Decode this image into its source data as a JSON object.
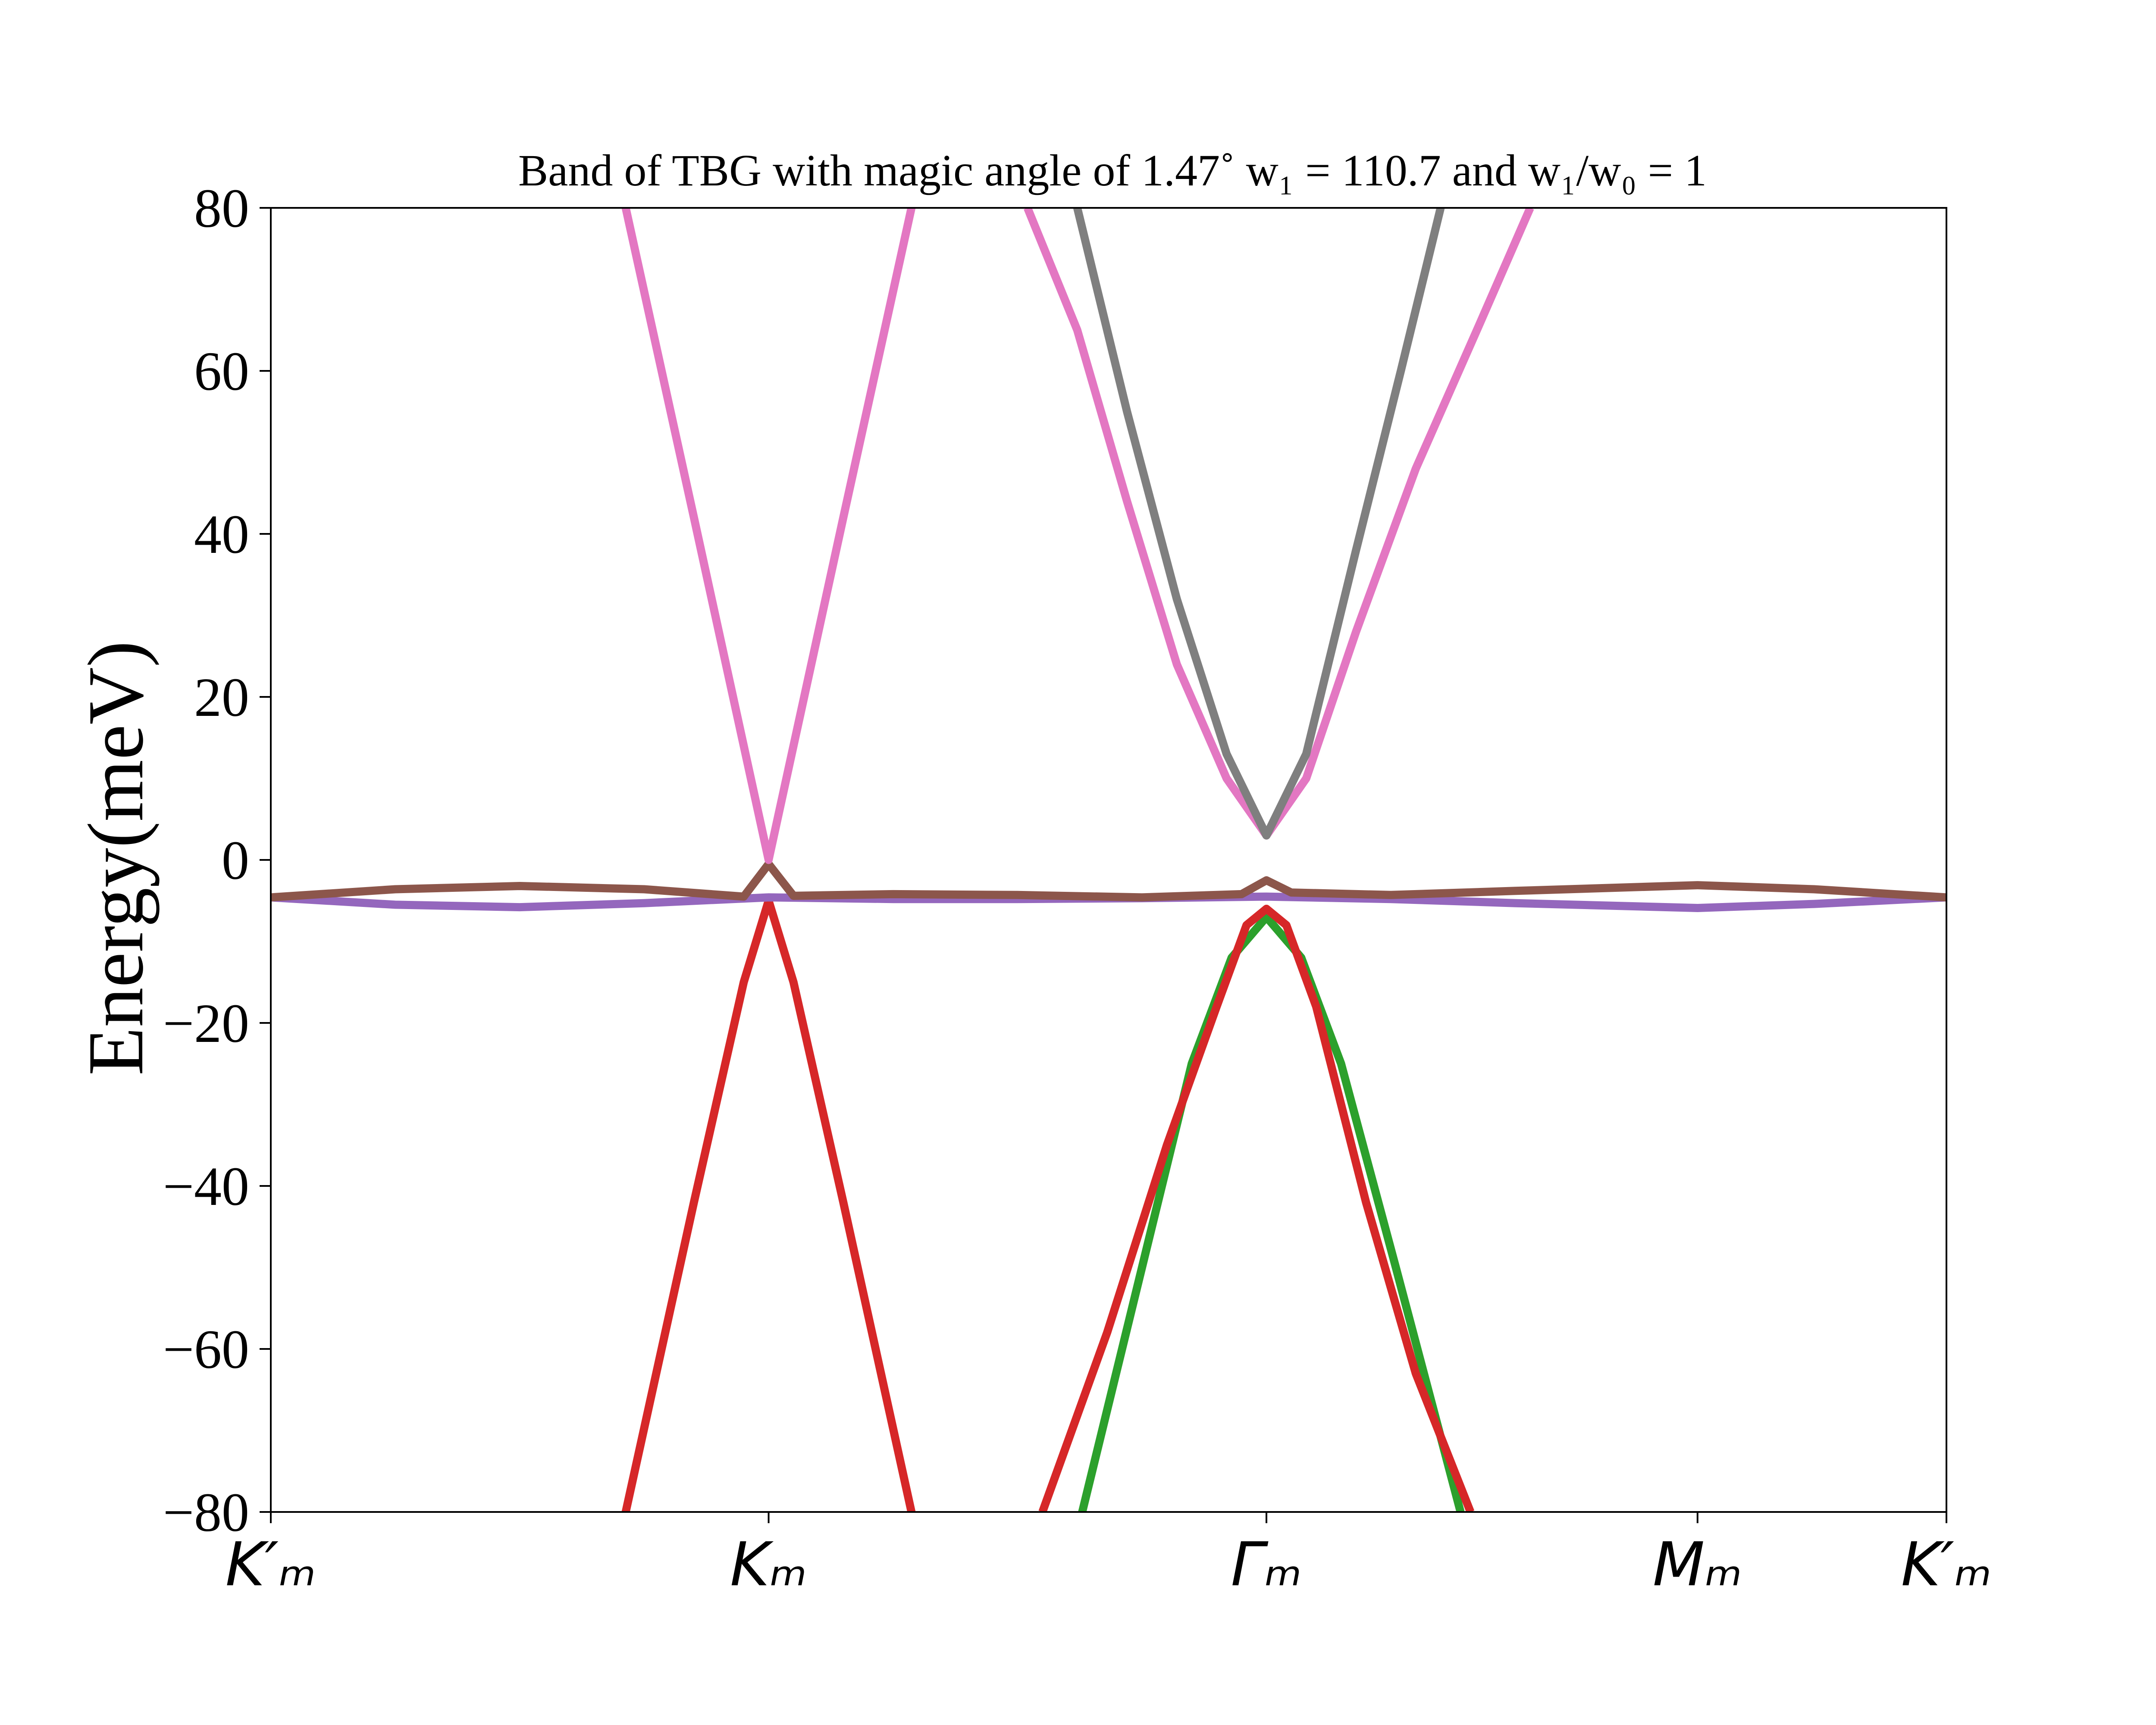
{
  "chart_data": {
    "type": "line",
    "title": "Band of TBG with magic angle of 1.47˚ w₁ = 110.7 and w₁/w₀ = 1",
    "xlabel": "",
    "ylabel": "Energy(meV)",
    "ylim": [
      -80,
      80
    ],
    "grid": false,
    "legend": "none",
    "x_ticks": [
      {
        "pos": 0,
        "label": "K′ₘ"
      },
      {
        "pos": 1,
        "label": "Kₘ"
      },
      {
        "pos": 2,
        "label": "Γₘ"
      },
      {
        "pos": 2.866,
        "label": "Mₘ"
      },
      {
        "pos": 3.366,
        "label": "K′ₘ"
      }
    ],
    "y_ticks": [
      {
        "value": 80,
        "label": "80"
      },
      {
        "value": 60,
        "label": "60"
      },
      {
        "value": 40,
        "label": "40"
      },
      {
        "value": 20,
        "label": "20"
      },
      {
        "value": 0,
        "label": "0"
      },
      {
        "value": -20,
        "label": "−20"
      },
      {
        "value": -40,
        "label": "−40"
      },
      {
        "value": -60,
        "label": "−60"
      },
      {
        "value": -80,
        "label": "−80"
      }
    ],
    "series": [
      {
        "color": "#2ca02c",
        "points": [
          [
            1.63,
            -80
          ],
          [
            1.75,
            -50
          ],
          [
            1.85,
            -25
          ],
          [
            1.93,
            -12
          ],
          [
            2.0,
            -7
          ],
          [
            2.07,
            -12
          ],
          [
            2.15,
            -25
          ],
          [
            2.26,
            -50
          ],
          [
            2.39,
            -80
          ]
        ]
      },
      {
        "color": "#d62728",
        "points": [
          [
            0.713,
            -80
          ],
          [
            0.85,
            -42
          ],
          [
            0.95,
            -15
          ],
          [
            1.0,
            -5
          ],
          [
            1.05,
            -15
          ],
          [
            1.15,
            -42
          ],
          [
            1.287,
            -80
          ]
        ]
      },
      {
        "color": "#d62728",
        "points": [
          [
            1.55,
            -80
          ],
          [
            1.68,
            -58
          ],
          [
            1.8,
            -35
          ],
          [
            1.9,
            -18
          ],
          [
            1.96,
            -8
          ],
          [
            2.0,
            -6
          ],
          [
            2.04,
            -8
          ],
          [
            2.1,
            -18
          ],
          [
            2.2,
            -42
          ],
          [
            2.3,
            -63
          ],
          [
            2.41,
            -80
          ]
        ]
      },
      {
        "color": "#9467bd",
        "points": [
          [
            0,
            -4.6
          ],
          [
            0.25,
            -5.5
          ],
          [
            0.5,
            -5.8
          ],
          [
            0.75,
            -5.3
          ],
          [
            1.0,
            -4.6
          ],
          [
            1.25,
            -4.8
          ],
          [
            1.5,
            -4.8
          ],
          [
            1.75,
            -4.7
          ],
          [
            2.0,
            -4.5
          ],
          [
            2.25,
            -4.8
          ],
          [
            2.5,
            -5.3
          ],
          [
            2.866,
            -5.9
          ],
          [
            3.1,
            -5.4
          ],
          [
            3.366,
            -4.6
          ]
        ]
      },
      {
        "color": "#8c564b",
        "points": [
          [
            0,
            -4.6
          ],
          [
            0.25,
            -3.6
          ],
          [
            0.5,
            -3.2
          ],
          [
            0.75,
            -3.6
          ],
          [
            0.95,
            -4.5
          ],
          [
            1.0,
            -0.5
          ],
          [
            1.05,
            -4.4
          ],
          [
            1.25,
            -4.2
          ],
          [
            1.5,
            -4.3
          ],
          [
            1.75,
            -4.6
          ],
          [
            1.95,
            -4.2
          ],
          [
            2.0,
            -2.5
          ],
          [
            2.05,
            -4.0
          ],
          [
            2.25,
            -4.3
          ],
          [
            2.5,
            -3.8
          ],
          [
            2.866,
            -3.1
          ],
          [
            3.1,
            -3.6
          ],
          [
            3.366,
            -4.6
          ]
        ]
      },
      {
        "color": "#e377c2",
        "points": [
          [
            0.713,
            80
          ],
          [
            0.85,
            42
          ],
          [
            0.95,
            14
          ],
          [
            1.0,
            0
          ],
          [
            1.05,
            14
          ],
          [
            1.15,
            42
          ],
          [
            1.287,
            80
          ]
        ]
      },
      {
        "color": "#e377c2",
        "points": [
          [
            1.52,
            80
          ],
          [
            1.62,
            65
          ],
          [
            1.72,
            44
          ],
          [
            1.82,
            24
          ],
          [
            1.92,
            10
          ],
          [
            2.0,
            3
          ],
          [
            2.08,
            10
          ],
          [
            2.18,
            28
          ],
          [
            2.3,
            48
          ],
          [
            2.43,
            66
          ],
          [
            2.53,
            80
          ]
        ]
      },
      {
        "color": "#7f7f7f",
        "points": [
          [
            1.62,
            80
          ],
          [
            1.72,
            55
          ],
          [
            1.82,
            32
          ],
          [
            1.92,
            13
          ],
          [
            2.0,
            3
          ],
          [
            2.08,
            13
          ],
          [
            2.18,
            38
          ],
          [
            2.27,
            60
          ],
          [
            2.35,
            80
          ]
        ]
      }
    ]
  }
}
